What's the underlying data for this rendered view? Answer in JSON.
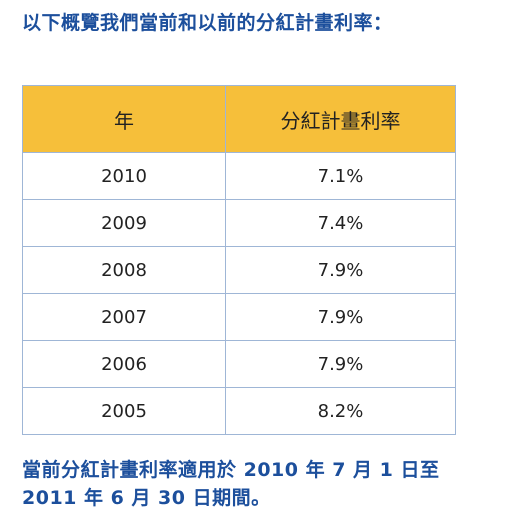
{
  "intro": "以下概覽我們當前和以前的分紅計畫利率：",
  "table": {
    "headers": [
      "年",
      "分紅計畫利率"
    ],
    "rows": [
      [
        "2010",
        "7.1%"
      ],
      [
        "2009",
        "7.4%"
      ],
      [
        "2008",
        "7.9%"
      ],
      [
        "2007",
        "7.9%"
      ],
      [
        "2006",
        "7.9%"
      ],
      [
        "2005",
        "8.2%"
      ]
    ]
  },
  "note": {
    "line1": "當前分紅計畫利率適用於 2010 年 7 月 1 日至",
    "line2": "2011 年 6 月 30 日期間。"
  },
  "colors": {
    "heading_text": "#1c4f9c",
    "header_fill": "#f6bf3a",
    "border": "#9fb6d6"
  }
}
